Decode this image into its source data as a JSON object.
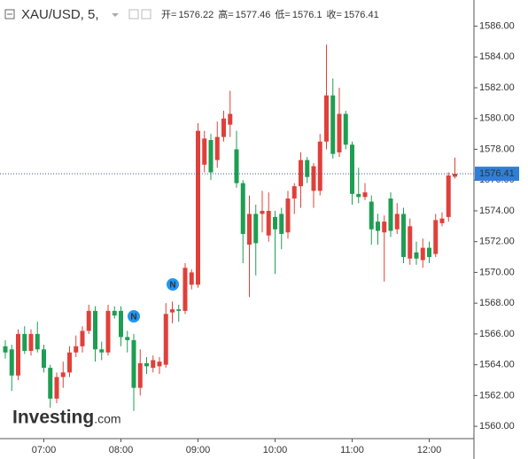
{
  "chart_data": {
    "type": "candlestick",
    "title": "XAU/USD, 5,",
    "ohlc_labels": [
      "开=",
      "高=",
      "低=",
      "收="
    ],
    "categories": [
      null,
      null,
      null,
      null,
      null,
      null,
      "07:00",
      null,
      null,
      null,
      null,
      null,
      null,
      null,
      null,
      null,
      null,
      null,
      "08:00",
      null,
      null,
      null,
      null,
      null,
      null,
      null,
      null,
      null,
      null,
      null,
      "09:00",
      null,
      null,
      null,
      null,
      null,
      null,
      null,
      null,
      null,
      null,
      null,
      "10:00",
      null,
      null,
      null,
      null,
      null,
      null,
      null,
      null,
      null,
      null,
      null,
      "11:00",
      null,
      null,
      null,
      null,
      null,
      null,
      null,
      null,
      null,
      null,
      null,
      "12:00",
      null,
      null,
      null,
      null
    ],
    "open": [
      1565.2,
      1565.0,
      1563.3,
      1566.0,
      1564.9,
      1566.0,
      1565.0,
      1563.8,
      1561.8,
      1563.2,
      1563.5,
      1564.8,
      1565.2,
      1566.2,
      1567.5,
      1565.0,
      1564.8,
      1567.5,
      1567.5,
      1565.8,
      1565.6,
      1562.5,
      1564.1,
      1563.8,
      1563.9,
      1564.0,
      1567.4,
      1567.6,
      1567.5,
      1569.2,
      1569.2,
      1577.0,
      1578.6,
      1577.3,
      1578.8,
      1579.6,
      1578.0,
      1575.8,
      1571.8,
      1573.8,
      1573.8,
      1572.4,
      1573.6,
      1573.8,
      1572.6,
      1574.8,
      1575.6,
      1577.3,
      1575.3,
      1575.3,
      1578.5,
      1581.5,
      1577.8,
      1580.3,
      1578.3,
      1575.1,
      1574.9,
      1574.6,
      1573.3,
      1572.6,
      1574.8,
      1572.8,
      1573.8,
      1570.9,
      1571.3,
      1570.8,
      1571.6,
      1571.2,
      1573.2,
      1573.6,
      1576.22
    ],
    "high": [
      1565.6,
      1565.3,
      1566.3,
      1566.5,
      1566.3,
      1566.8,
      1565.3,
      1564.0,
      1563.5,
      1564.2,
      1565.2,
      1565.9,
      1566.5,
      1567.9,
      1567.8,
      1565.5,
      1567.9,
      1567.8,
      1567.8,
      1566.2,
      1566.0,
      1565.0,
      1564.5,
      1564.6,
      1564.5,
      1568.0,
      1568.1,
      1567.9,
      1570.6,
      1570.2,
      1579.7,
      1579.2,
      1579.0,
      1579.8,
      1580.5,
      1581.8,
      1579.2,
      1576.0,
      1575.0,
      1574.4,
      1575.3,
      1575.2,
      1574.0,
      1574.2,
      1575.3,
      1575.8,
      1577.8,
      1577.5,
      1577.1,
      1579.0,
      1584.8,
      1582.6,
      1582.0,
      1580.5,
      1578.5,
      1576.8,
      1575.8,
      1575.0,
      1573.8,
      1573.7,
      1575.2,
      1574.5,
      1574.2,
      1573.5,
      1572.0,
      1572.2,
      1572.0,
      1573.8,
      1573.9,
      1576.5,
      1577.46
    ],
    "low": [
      1564.4,
      1562.3,
      1563.0,
      1564.7,
      1564.6,
      1564.8,
      1563.5,
      1561.2,
      1561.5,
      1562.5,
      1563.2,
      1564.5,
      1564.8,
      1566.0,
      1564.2,
      1564.3,
      1564.6,
      1567.0,
      1565.2,
      1564.8,
      1561.0,
      1562.0,
      1563.4,
      1563.5,
      1563.4,
      1563.8,
      1566.7,
      1566.8,
      1567.3,
      1568.9,
      1569.0,
      1576.5,
      1576.0,
      1576.8,
      1578.5,
      1578.8,
      1575.5,
      1570.6,
      1568.4,
      1569.8,
      1572.6,
      1572.0,
      1569.9,
      1571.5,
      1572.2,
      1573.8,
      1574.2,
      1575.8,
      1574.2,
      1575.0,
      1578.0,
      1577.4,
      1577.5,
      1578.0,
      1574.4,
      1574.5,
      1574.7,
      1571.8,
      1571.8,
      1569.4,
      1572.3,
      1572.5,
      1570.6,
      1570.5,
      1570.5,
      1570.3,
      1570.6,
      1571.0,
      1573.0,
      1573.3,
      1576.1
    ],
    "close": [
      1564.8,
      1563.3,
      1566.0,
      1564.9,
      1566.0,
      1565.0,
      1563.8,
      1561.8,
      1563.2,
      1563.5,
      1564.8,
      1565.2,
      1566.2,
      1567.5,
      1565.0,
      1564.8,
      1567.5,
      1567.2,
      1565.8,
      1565.6,
      1562.5,
      1564.1,
      1563.9,
      1564.3,
      1564.2,
      1567.3,
      1567.6,
      1567.5,
      1570.3,
      1570.0,
      1579.2,
      1578.7,
      1576.5,
      1578.8,
      1580.0,
      1580.3,
      1575.8,
      1572.5,
      1573.8,
      1571.9,
      1574.0,
      1574.0,
      1572.8,
      1572.5,
      1574.8,
      1575.6,
      1577.3,
      1576.2,
      1576.9,
      1578.5,
      1581.5,
      1577.7,
      1580.3,
      1578.3,
      1575.1,
      1574.9,
      1575.2,
      1572.8,
      1572.7,
      1573.3,
      1572.7,
      1573.8,
      1571.0,
      1573.0,
      1570.9,
      1571.6,
      1571.0,
      1573.4,
      1573.5,
      1576.3,
      1576.41
    ],
    "up_color": "#e0403a",
    "down_color": "#1e9e52",
    "ylim": [
      1559.2,
      1587.7
    ],
    "yticks": [
      {
        "value": 1560,
        "label": "1560.00"
      },
      {
        "value": 1562,
        "label": "1562.00"
      },
      {
        "value": 1564,
        "label": "1564.00"
      },
      {
        "value": 1566,
        "label": "1566.00"
      },
      {
        "value": 1568,
        "label": "1568.00"
      },
      {
        "value": 1570,
        "label": "1570.00"
      },
      {
        "value": 1572,
        "label": "1572.00"
      },
      {
        "value": 1574,
        "label": "1574.00"
      },
      {
        "value": 1576,
        "label": "1576.00"
      },
      {
        "value": 1578,
        "label": "1578.00"
      },
      {
        "value": 1580,
        "label": "1580.00"
      },
      {
        "value": 1582,
        "label": "1582.00"
      },
      {
        "value": 1584,
        "label": "1584.00"
      },
      {
        "value": 1586,
        "label": "1586.00"
      }
    ],
    "grid": false,
    "annotations": [
      "N",
      "N"
    ],
    "watermark": [
      "Investing",
      ".com"
    ]
  }
}
